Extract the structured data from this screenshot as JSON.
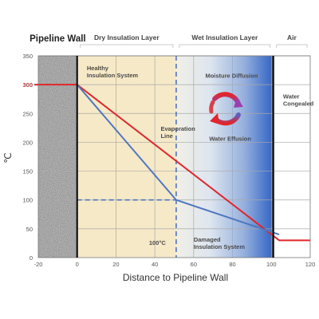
{
  "chart_data": {
    "type": "line",
    "title": "",
    "xlabel": "Distance to Pipeline Wall",
    "ylabel": "℃",
    "xlim": [
      -20,
      120
    ],
    "ylim": [
      0,
      350
    ],
    "x_ticks": [
      -20,
      0,
      20,
      40,
      60,
      80,
      100,
      120
    ],
    "y_ticks": [
      0,
      50,
      100,
      150,
      200,
      250,
      300,
      350
    ],
    "highlight_tick": {
      "value": 300,
      "color": "#e0262b"
    },
    "grid": true,
    "zones": [
      {
        "label": "Pipeline Wall",
        "x_range": [
          -20,
          0
        ],
        "fill": "granite"
      },
      {
        "label": "Dry Insulation Layer",
        "x_range": [
          0,
          51
        ],
        "fill": "#f6e9c8"
      },
      {
        "label": "Wet Insulation Layer",
        "x_range": [
          51,
          101
        ],
        "fill": "gradient-blue"
      },
      {
        "label": "Air",
        "x_range": [
          101,
          120
        ],
        "fill": "#ffffff"
      }
    ],
    "series": [
      {
        "name": "",
        "color": "#e0262b",
        "points": [
          [
            -20,
            300
          ],
          [
            0,
            300
          ],
          [
            104,
            30
          ],
          [
            120,
            30
          ]
        ]
      },
      {
        "name": "",
        "color": "#4e77bf",
        "points": [
          [
            0,
            300
          ],
          [
            51,
            100
          ],
          [
            104,
            40
          ]
        ]
      }
    ],
    "reference_lines": [
      {
        "orientation": "vertical",
        "x": 51,
        "y_range": [
          0,
          350
        ],
        "color": "#4e77bf",
        "style": "dashed"
      },
      {
        "orientation": "horizontal",
        "y": 100,
        "x_range": [
          0,
          51
        ],
        "color": "#4e77bf",
        "style": "dashed"
      }
    ],
    "annotations": [
      {
        "id": "healthy",
        "lines": [
          "Healthy",
          "Insulation System"
        ],
        "x": 5,
        "y": 325
      },
      {
        "id": "evaporation",
        "lines": [
          "Evaporation",
          "Line"
        ],
        "x": 43,
        "y": 220
      },
      {
        "id": "moisture",
        "lines": [
          "Moisture Diffusion"
        ],
        "x": 66,
        "y": 312
      },
      {
        "id": "water-effusion",
        "lines": [
          "Water Effusion"
        ],
        "x": 68,
        "y": 203
      },
      {
        "id": "water-congealed",
        "lines": [
          "Water",
          "Congealed"
        ],
        "x": 106,
        "y": 276
      },
      {
        "id": "hundred-c",
        "lines": [
          "100°C"
        ],
        "x": 37,
        "y": 22
      },
      {
        "id": "damaged",
        "lines": [
          "Damaged",
          "Insulation System"
        ],
        "x": 60,
        "y": 28
      }
    ]
  }
}
